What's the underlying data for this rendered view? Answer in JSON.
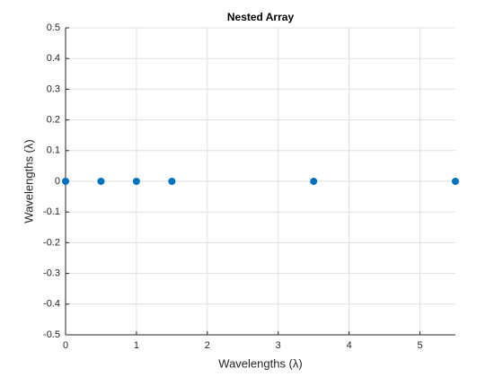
{
  "chart_data": {
    "type": "scatter",
    "title": "Nested Array",
    "xlabel": "Wavelengths  (λ)",
    "ylabel": "Wavelengths  (λ)",
    "x": [
      0,
      0.5,
      1,
      1.5,
      3.5,
      5.5
    ],
    "values": [
      0,
      0,
      0,
      0,
      0,
      0
    ],
    "color": "#0072bd",
    "xlim": [
      0,
      5.5
    ],
    "xticks": [
      0,
      1,
      2,
      3,
      4,
      5
    ],
    "ylim": [
      -0.5,
      0.5
    ],
    "yticks": [
      -0.5,
      -0.4,
      -0.3,
      -0.2,
      -0.1,
      0,
      0.1,
      0.2,
      0.3,
      0.4,
      0.5
    ],
    "grid": true
  }
}
